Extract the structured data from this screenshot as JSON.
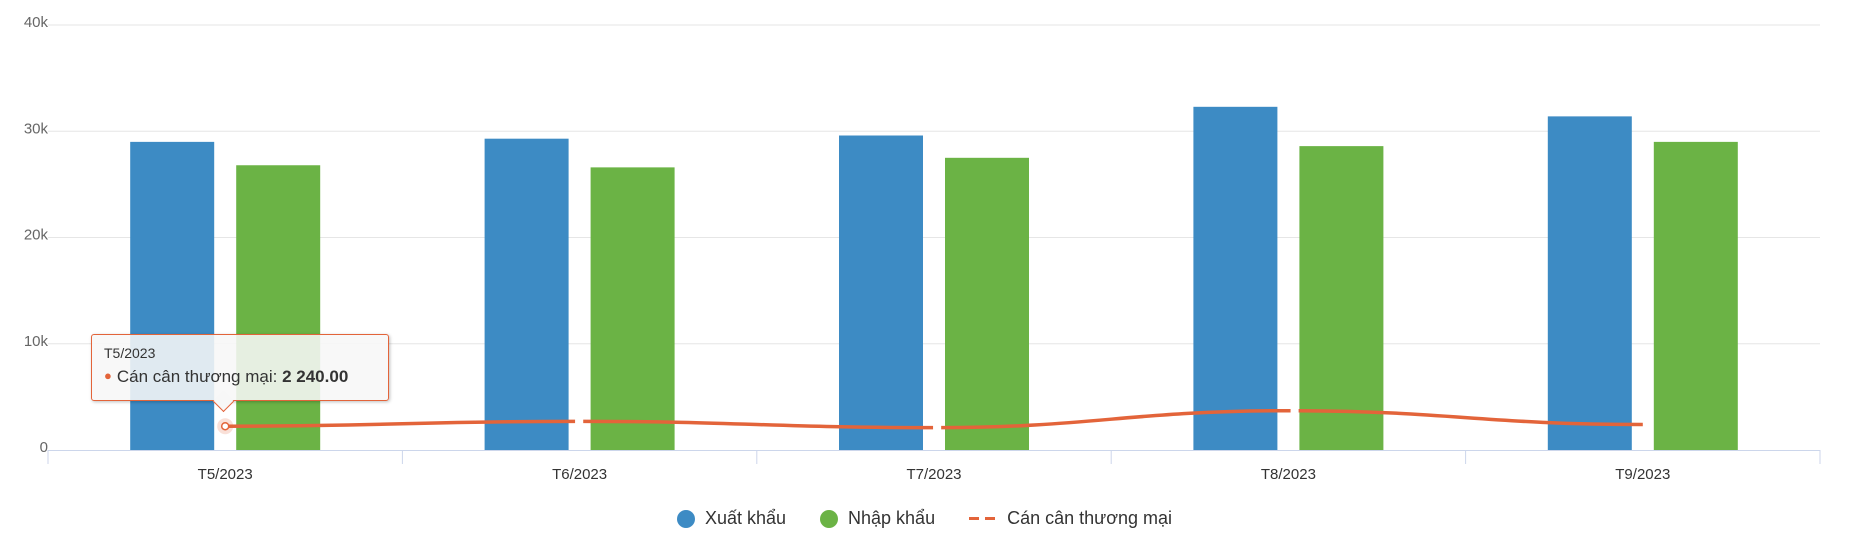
{
  "chart_data": {
    "type": "bar",
    "categories": [
      "T5/2023",
      "T6/2023",
      "T7/2023",
      "T8/2023",
      "T9/2023"
    ],
    "series": [
      {
        "name": "Xuất khẩu",
        "kind": "bar",
        "color": "#3d8bc4",
        "values": [
          29000,
          29300,
          29600,
          32300,
          31400
        ]
      },
      {
        "name": "Nhập khẩu",
        "kind": "bar",
        "color": "#6bb345",
        "values": [
          26800,
          26600,
          27500,
          28600,
          29000
        ]
      },
      {
        "name": "Cán cân thương mại",
        "kind": "line",
        "dash": true,
        "color": "#e3643a",
        "values": [
          2240,
          2700,
          2100,
          3700,
          2400
        ]
      }
    ],
    "yticks": [
      "0",
      "10k",
      "20k",
      "30k",
      "40k"
    ],
    "ylim": [
      0,
      40000
    ],
    "grid": true,
    "legend_position": "bottom-center",
    "tooltip": {
      "category": "T5/2023",
      "series": "Cán cân thương mại",
      "value_text": "2 240.00"
    }
  }
}
